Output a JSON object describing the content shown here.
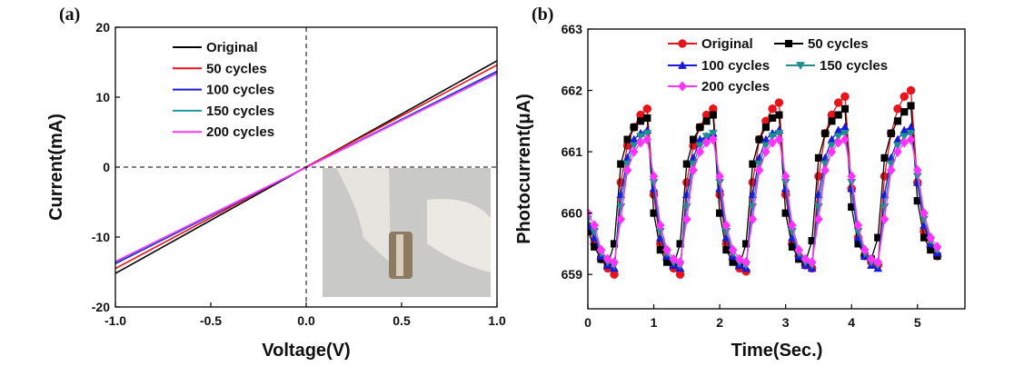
{
  "chart_data": [
    {
      "type": "line",
      "panel_label": "(a)",
      "x_label": "Voltage(V)",
      "y_label": "Current(mA)",
      "x": [
        -1,
        1
      ],
      "xlim": [
        -1,
        1
      ],
      "ylim": [
        -20,
        20
      ],
      "xticks": [
        {
          "value": -1,
          "label": "-1.0"
        },
        -0.5,
        {
          "value": 0,
          "label": "0.0"
        },
        0.5,
        {
          "value": 1,
          "label": "1.0"
        }
      ],
      "yticks": [
        -20,
        -10,
        0,
        10,
        20
      ],
      "series": [
        {
          "name": "Original",
          "color": "#000000",
          "values": [
            -15.2,
            15.2
          ]
        },
        {
          "name": "50 cycles",
          "color": "#e8141c",
          "values": [
            -14.5,
            14.6
          ]
        },
        {
          "name": "100 cycles",
          "color": "#1a1adb",
          "values": [
            -13.8,
            13.7
          ]
        },
        {
          "name": "150 cycles",
          "color": "#1f9a96",
          "values": [
            -13.6,
            13.5
          ]
        },
        {
          "name": " 200 cycles",
          "color": "#ff33ff",
          "values": [
            -13.5,
            13.4
          ]
        }
      ]
    },
    {
      "type": "line",
      "panel_label": "(b)",
      "x_label": "Time(Sec.)",
      "y_label": "Photocurrent(μA)",
      "x": [
        0,
        0.1,
        0.2,
        0.3,
        0.4,
        0.5,
        0.6,
        0.7,
        0.8,
        0.9,
        1,
        1.1,
        1.2,
        1.3,
        1.4,
        1.5,
        1.6,
        1.7,
        1.8,
        1.9,
        2,
        2.1,
        2.2,
        2.3,
        2.4,
        2.5,
        2.6,
        2.7,
        2.8,
        2.9,
        3,
        3.1,
        3.2,
        3.3,
        3.4,
        3.5,
        3.6,
        3.7,
        3.8,
        3.9,
        4,
        4.1,
        4.2,
        4.3,
        4.4,
        4.5,
        4.6,
        4.7,
        4.8,
        4.9,
        5,
        5.1,
        5.2,
        5.3
      ],
      "xlim": [
        0,
        5.72
      ],
      "ylim": [
        658.44,
        663
      ],
      "xticks": [
        0,
        1,
        2,
        3,
        4,
        5
      ],
      "yticks": [
        659,
        660,
        661,
        662,
        663
      ],
      "series": [
        {
          "name": "Original",
          "color": "#e8141c",
          "marker": "circle",
          "values": [
            659.8,
            659.5,
            659.25,
            659.1,
            659.0,
            660.5,
            661.1,
            661.4,
            661.6,
            661.7,
            660.3,
            659.5,
            659.25,
            659.1,
            659.0,
            660.5,
            661.1,
            661.4,
            661.6,
            661.7,
            660.3,
            659.5,
            659.25,
            659.1,
            659.05,
            660.5,
            661.2,
            661.5,
            661.7,
            661.8,
            660.3,
            659.5,
            659.3,
            659.15,
            659.1,
            660.6,
            661.3,
            661.6,
            661.8,
            661.9,
            660.4,
            659.6,
            659.3,
            659.2,
            659.15,
            660.6,
            661.3,
            661.7,
            661.9,
            662.0,
            660.5,
            659.7,
            659.45,
            659.3
          ]
        },
        {
          "name": "50 cycles",
          "color": "#000000",
          "marker": "square",
          "values": [
            659.7,
            659.45,
            659.25,
            659.15,
            659.5,
            660.8,
            661.2,
            661.4,
            661.5,
            661.55,
            660.0,
            659.4,
            659.2,
            659.15,
            659.5,
            660.8,
            661.2,
            661.4,
            661.5,
            661.6,
            660.0,
            659.4,
            659.2,
            659.15,
            659.5,
            660.8,
            661.2,
            661.4,
            661.55,
            661.6,
            660.0,
            659.45,
            659.25,
            659.2,
            659.55,
            660.9,
            661.3,
            661.5,
            661.6,
            661.7,
            660.1,
            659.5,
            659.3,
            659.25,
            659.6,
            660.9,
            661.3,
            661.5,
            661.65,
            661.75,
            660.2,
            659.6,
            659.4,
            659.3
          ]
        },
        {
          "name": "100 cycles",
          "color": "#1a1adb",
          "marker": "triangle-up",
          "values": [
            659.8,
            659.6,
            659.3,
            659.15,
            659.1,
            660.3,
            660.9,
            661.2,
            661.3,
            661.35,
            660.4,
            659.6,
            659.3,
            659.15,
            659.1,
            660.3,
            660.9,
            661.2,
            661.25,
            661.3,
            660.4,
            659.6,
            659.3,
            659.15,
            659.1,
            660.3,
            660.9,
            661.2,
            661.3,
            661.35,
            660.4,
            659.6,
            659.3,
            659.15,
            659.1,
            660.3,
            660.9,
            661.2,
            661.35,
            661.4,
            660.4,
            659.6,
            659.3,
            659.15,
            659.1,
            660.3,
            660.9,
            661.2,
            661.35,
            661.4,
            660.5,
            659.8,
            659.5,
            659.35
          ]
        },
        {
          "name": "150 cycles",
          "color": "#1f8f8f",
          "marker": "triangle-down",
          "values": [
            659.9,
            659.7,
            659.35,
            659.2,
            659.15,
            660.1,
            660.8,
            661.1,
            661.25,
            661.3,
            660.5,
            659.7,
            659.35,
            659.2,
            659.15,
            660.1,
            660.8,
            661.1,
            661.25,
            661.3,
            660.5,
            659.7,
            659.35,
            659.2,
            659.15,
            660.1,
            660.8,
            661.1,
            661.25,
            661.3,
            660.5,
            659.7,
            659.35,
            659.2,
            659.15,
            660.1,
            660.8,
            661.1,
            661.25,
            661.3,
            660.5,
            659.7,
            659.35,
            659.2,
            659.15,
            660.1,
            660.8,
            661.1,
            661.25,
            661.3,
            660.6,
            659.9,
            659.55,
            659.4
          ]
        },
        {
          "name": "200 cycles",
          "color": "#ff33ff",
          "marker": "diamond",
          "values": [
            660.0,
            659.8,
            659.4,
            659.25,
            659.2,
            659.9,
            660.7,
            661.0,
            661.15,
            661.2,
            660.6,
            659.8,
            659.4,
            659.25,
            659.2,
            659.9,
            660.7,
            661.0,
            661.15,
            661.2,
            660.6,
            659.8,
            659.4,
            659.25,
            659.2,
            659.9,
            660.7,
            661.0,
            661.15,
            661.2,
            660.6,
            659.8,
            659.4,
            659.25,
            659.2,
            659.9,
            660.7,
            661.0,
            661.15,
            661.2,
            660.6,
            659.8,
            659.4,
            659.25,
            659.2,
            659.9,
            660.7,
            661.0,
            661.15,
            661.2,
            660.7,
            660.0,
            659.6,
            659.45
          ]
        }
      ]
    }
  ]
}
